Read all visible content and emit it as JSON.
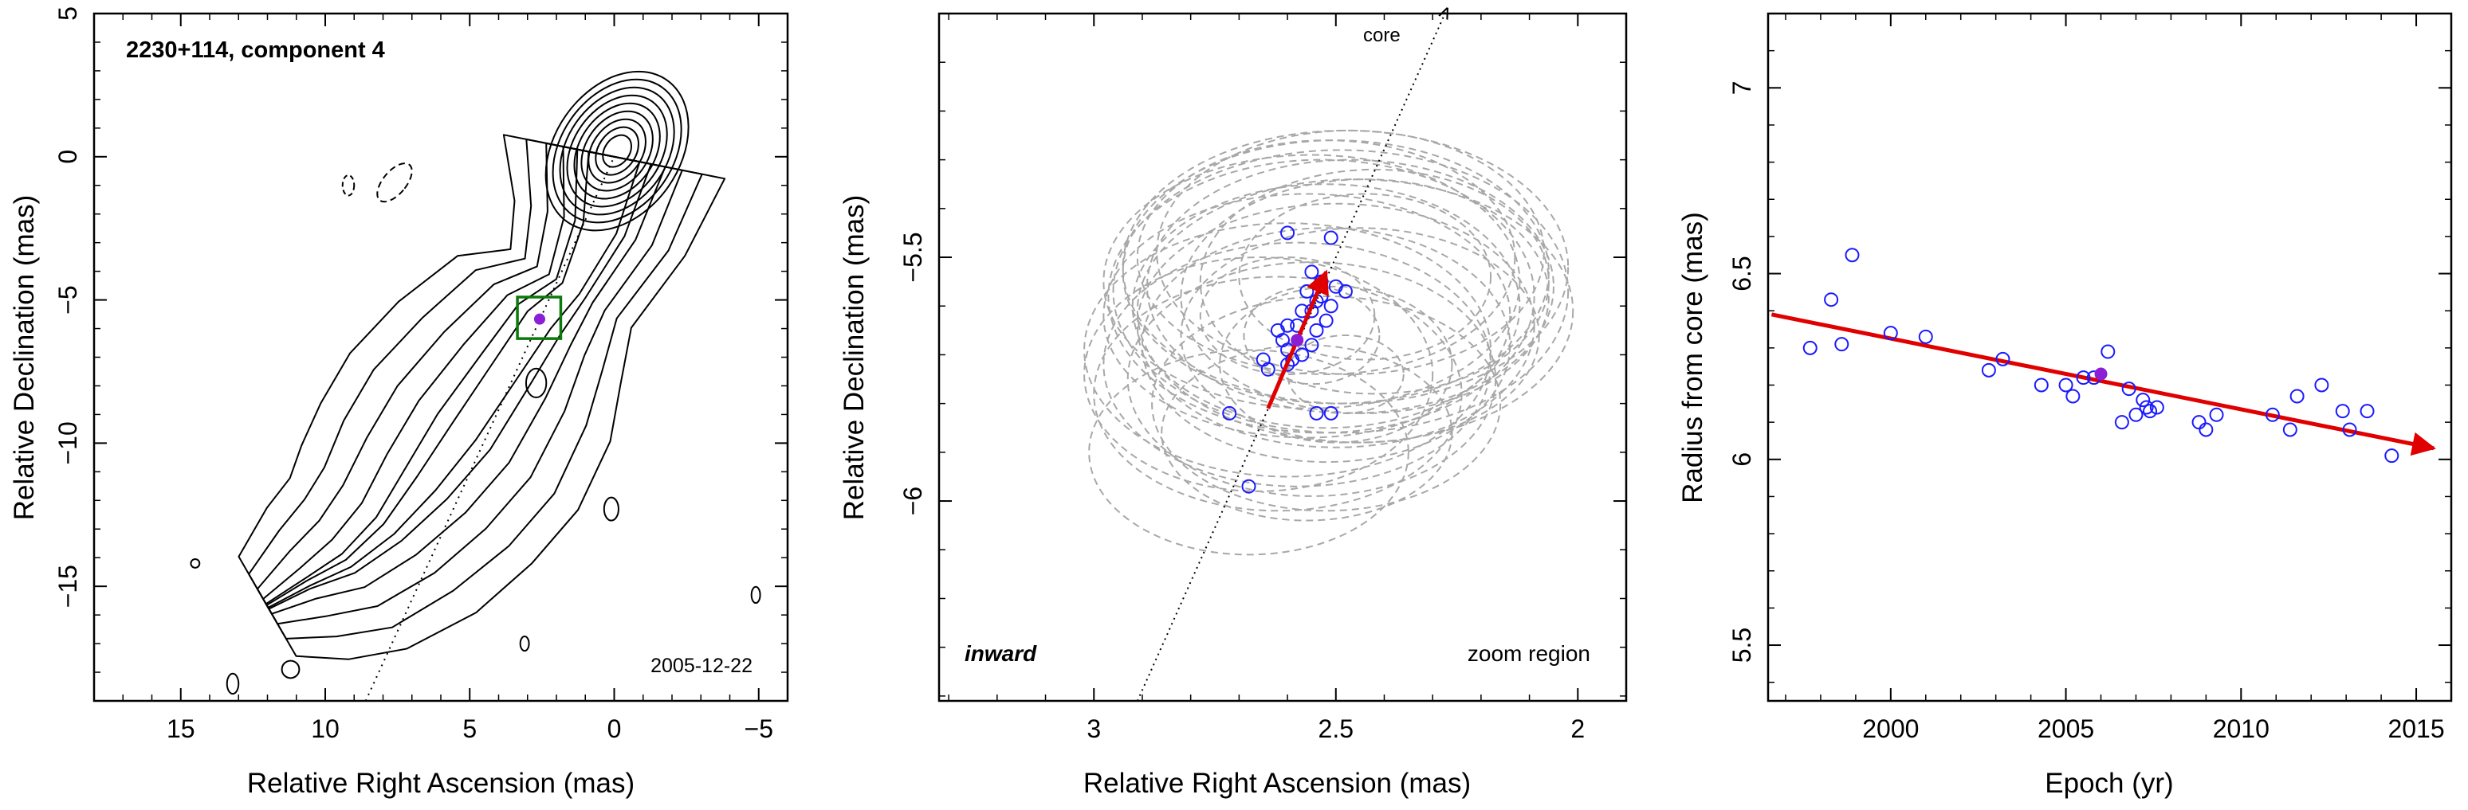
{
  "chart_data": [
    {
      "type": "contour",
      "title": "2230+114, component 4",
      "xlabel": "Relative Right Ascension (mas)",
      "ylabel": "Relative Declination (mas)",
      "xlim": [
        18,
        -6
      ],
      "ylim": [
        -19,
        5
      ],
      "xticks": [
        15,
        10,
        5,
        0,
        -5
      ],
      "yticks": [
        5,
        0,
        -5,
        -10,
        -15
      ],
      "annotation": "2005-12-22",
      "component_position": [
        2.58,
        -5.67
      ],
      "zoom_box": {
        "x": [
          3.35,
          1.85
        ],
        "y": [
          -6.35,
          -4.9
        ]
      },
      "direction_line": {
        "from": [
          8.6,
          -19.0
        ],
        "to": [
          0.0,
          0.0
        ]
      },
      "core_levels": [
        0.6,
        0.9,
        1.2,
        1.5,
        1.8,
        2.1,
        2.4,
        2.7,
        3.0
      ]
    },
    {
      "type": "scatter",
      "xlabel": "Relative Right Ascension (mas)",
      "ylabel": "Relative Declination (mas)",
      "xlim": [
        3.32,
        1.9
      ],
      "ylim": [
        -6.41,
        -5.0
      ],
      "xticks": [
        3,
        2.5,
        2
      ],
      "yticks": [
        -5.5,
        -6
      ],
      "annotations": {
        "left": "inward",
        "right": "zoom region",
        "core": "core"
      },
      "points": [
        [
          2.6,
          -5.45
        ],
        [
          2.51,
          -5.46
        ],
        [
          2.55,
          -5.53
        ],
        [
          2.53,
          -5.55
        ],
        [
          2.5,
          -5.56
        ],
        [
          2.56,
          -5.57
        ],
        [
          2.48,
          -5.57
        ],
        [
          2.53,
          -5.58
        ],
        [
          2.54,
          -5.59
        ],
        [
          2.51,
          -5.6
        ],
        [
          2.57,
          -5.61
        ],
        [
          2.55,
          -5.61
        ],
        [
          2.52,
          -5.63
        ],
        [
          2.6,
          -5.64
        ],
        [
          2.58,
          -5.64
        ],
        [
          2.54,
          -5.65
        ],
        [
          2.62,
          -5.65
        ],
        [
          2.61,
          -5.67
        ],
        [
          2.55,
          -5.68
        ],
        [
          2.6,
          -5.69
        ],
        [
          2.57,
          -5.7
        ],
        [
          2.59,
          -5.71
        ],
        [
          2.6,
          -5.72
        ],
        [
          2.65,
          -5.71
        ],
        [
          2.64,
          -5.73
        ],
        [
          2.72,
          -5.82
        ],
        [
          2.54,
          -5.82
        ],
        [
          2.51,
          -5.82
        ],
        [
          2.68,
          -5.97
        ]
      ],
      "mean_point": [
        2.58,
        -5.67
      ],
      "arrow": {
        "from": [
          2.64,
          -5.81
        ],
        "to": [
          2.52,
          -5.53
        ]
      },
      "ellipses": [
        [
          2.5,
          -5.53,
          0.44,
          0.27
        ],
        [
          2.47,
          -5.56,
          0.42,
          0.26
        ],
        [
          2.52,
          -5.6,
          0.4,
          0.25
        ],
        [
          2.48,
          -5.52,
          0.46,
          0.28
        ],
        [
          2.44,
          -5.58,
          0.38,
          0.24
        ],
        [
          2.55,
          -5.55,
          0.43,
          0.26
        ],
        [
          2.5,
          -5.64,
          0.41,
          0.25
        ],
        [
          2.46,
          -5.61,
          0.45,
          0.27
        ],
        [
          2.52,
          -5.5,
          0.39,
          0.24
        ],
        [
          2.49,
          -5.57,
          0.47,
          0.29
        ],
        [
          2.56,
          -5.62,
          0.42,
          0.25
        ],
        [
          2.42,
          -5.55,
          0.36,
          0.23
        ],
        [
          2.52,
          -5.68,
          0.38,
          0.24
        ],
        [
          2.47,
          -5.49,
          0.4,
          0.25
        ],
        [
          2.53,
          -5.58,
          0.44,
          0.28
        ],
        [
          2.45,
          -5.66,
          0.37,
          0.22
        ],
        [
          2.58,
          -5.72,
          0.4,
          0.25
        ],
        [
          2.55,
          -5.75,
          0.38,
          0.24
        ],
        [
          2.6,
          -5.69,
          0.42,
          0.26
        ],
        [
          2.62,
          -5.78,
          0.38,
          0.24
        ],
        [
          2.52,
          -5.8,
          0.36,
          0.22
        ],
        [
          2.66,
          -5.74,
          0.36,
          0.24
        ],
        [
          2.5,
          -5.72,
          0.24,
          0.16
        ],
        [
          2.56,
          -5.86,
          0.3,
          0.18
        ],
        [
          2.68,
          -5.9,
          0.33,
          0.21
        ],
        [
          2.6,
          -5.62,
          0.18,
          0.12
        ],
        [
          2.48,
          -5.74,
          0.12,
          0.08
        ],
        [
          2.55,
          -5.66,
          0.14,
          0.1
        ],
        [
          2.44,
          -5.54,
          0.26,
          0.17
        ]
      ]
    },
    {
      "type": "scatter",
      "xlabel": "Epoch (yr)",
      "ylabel": "Radius from core (mas)",
      "xlim": [
        1996.5,
        2016.0
      ],
      "ylim": [
        5.35,
        7.2
      ],
      "xticks": [
        2000,
        2005,
        2010,
        2015
      ],
      "yticks": [
        5.5,
        6,
        6.5,
        7
      ],
      "points": [
        [
          1997.7,
          6.3
        ],
        [
          1998.3,
          6.43
        ],
        [
          1998.6,
          6.31
        ],
        [
          1998.9,
          6.55
        ],
        [
          2000.0,
          6.34
        ],
        [
          2001.0,
          6.33
        ],
        [
          2002.8,
          6.24
        ],
        [
          2003.2,
          6.27
        ],
        [
          2004.3,
          6.2
        ],
        [
          2005.0,
          6.2
        ],
        [
          2005.2,
          6.17
        ],
        [
          2005.5,
          6.22
        ],
        [
          2005.8,
          6.22
        ],
        [
          2006.2,
          6.29
        ],
        [
          2006.6,
          6.1
        ],
        [
          2006.8,
          6.19
        ],
        [
          2007.0,
          6.12
        ],
        [
          2007.2,
          6.16
        ],
        [
          2007.3,
          6.14
        ],
        [
          2007.4,
          6.13
        ],
        [
          2007.6,
          6.14
        ],
        [
          2008.8,
          6.1
        ],
        [
          2009.0,
          6.08
        ],
        [
          2009.3,
          6.12
        ],
        [
          2010.9,
          6.12
        ],
        [
          2011.4,
          6.08
        ],
        [
          2011.6,
          6.17
        ],
        [
          2012.3,
          6.2
        ],
        [
          2012.9,
          6.13
        ],
        [
          2013.1,
          6.08
        ],
        [
          2013.6,
          6.13
        ],
        [
          2014.3,
          6.01
        ]
      ],
      "mean_point": [
        2006.0,
        6.23
      ],
      "fit": {
        "from": [
          1996.6,
          6.39
        ],
        "to": [
          2015.5,
          6.03
        ]
      }
    }
  ]
}
